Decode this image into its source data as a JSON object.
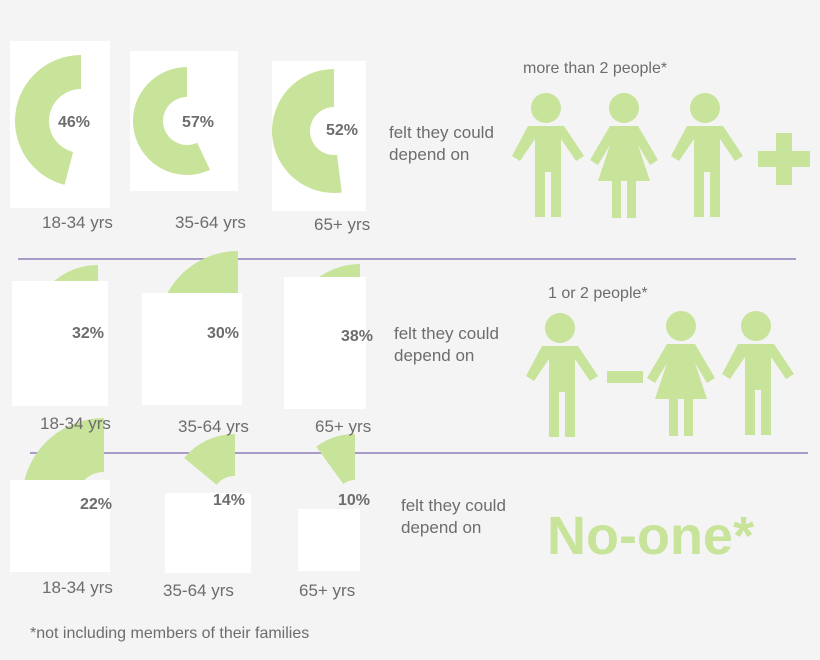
{
  "colors": {
    "accent": "#c8e39a",
    "divider": "#a99bc8",
    "text": "#6d6d6d",
    "card": "#ffffff"
  },
  "rows": [
    {
      "caption_line1": "felt they could",
      "caption_line2": "depend on",
      "header": "more than 2 people*",
      "icon_set": "three-people-plus"
    },
    {
      "caption_line1": "felt they could",
      "caption_line2": "depend on",
      "header": "1 or 2 people*",
      "icon_set": "one-minus-two-people"
    },
    {
      "caption_line1": "felt they could",
      "caption_line2": "depend on",
      "header": "No-one*",
      "icon_set": "text"
    }
  ],
  "chart_data": [
    {
      "type": "pie",
      "row": "more than 2 people*",
      "categories": [
        "18-34 yrs",
        "35-64 yrs",
        "65+ yrs"
      ],
      "values": [
        46,
        57,
        52
      ],
      "labels": [
        "46%",
        "57%",
        "52%"
      ]
    },
    {
      "type": "pie",
      "row": "1 or 2 people*",
      "categories": [
        "18-34 yrs",
        "35-64 yrs",
        "65+ yrs"
      ],
      "values": [
        32,
        30,
        38
      ],
      "labels": [
        "32%",
        "30%",
        "38%"
      ]
    },
    {
      "type": "pie",
      "row": "No-one*",
      "categories": [
        "18-34 yrs",
        "35-64 yrs",
        "65+ yrs"
      ],
      "values": [
        22,
        14,
        10
      ],
      "labels": [
        "22%",
        "14%",
        "10%"
      ]
    }
  ],
  "footnote": "*not including members of their families"
}
